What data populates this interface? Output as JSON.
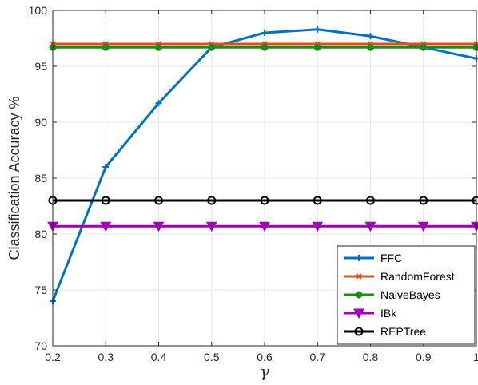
{
  "chart_data": {
    "type": "line",
    "xlabel": "γ",
    "ylabel": "Classification Accuracy %",
    "x": [
      0.2,
      0.3,
      0.4,
      0.5,
      0.6,
      0.7,
      0.8,
      0.9,
      1
    ],
    "xlim": [
      0.2,
      1
    ],
    "ylim": [
      70,
      100
    ],
    "xticks": [
      "0.2",
      "0.3",
      "0.4",
      "0.5",
      "0.6",
      "0.7",
      "0.8",
      "0.9",
      "1"
    ],
    "yticks": [
      "70",
      "75",
      "80",
      "85",
      "90",
      "95",
      "100"
    ],
    "grid": true,
    "legend_position": "bottom-right",
    "series": [
      {
        "name": "FFC",
        "color": "#0072BD",
        "marker": "plus",
        "values": [
          74.0,
          86.0,
          91.7,
          96.7,
          98.0,
          98.3,
          97.7,
          96.7,
          95.7
        ]
      },
      {
        "name": "RandomForest",
        "color": "#D95319",
        "marker": "x",
        "values": [
          97.0,
          97.0,
          97.0,
          97.0,
          97.0,
          97.0,
          97.0,
          97.0,
          97.0
        ]
      },
      {
        "name": "NaiveBayes",
        "color": "#1E8A1E",
        "marker": "filled-circle",
        "values": [
          96.7,
          96.7,
          96.7,
          96.7,
          96.7,
          96.7,
          96.7,
          96.7,
          96.7
        ]
      },
      {
        "name": "IBk",
        "color": "#9B00B4",
        "marker": "filled-triangle-down",
        "values": [
          80.7,
          80.7,
          80.7,
          80.7,
          80.7,
          80.7,
          80.7,
          80.7,
          80.7
        ]
      },
      {
        "name": "REPTree",
        "color": "#000000",
        "marker": "open-circle",
        "values": [
          83.0,
          83.0,
          83.0,
          83.0,
          83.0,
          83.0,
          83.0,
          83.0,
          83.0
        ]
      }
    ]
  }
}
